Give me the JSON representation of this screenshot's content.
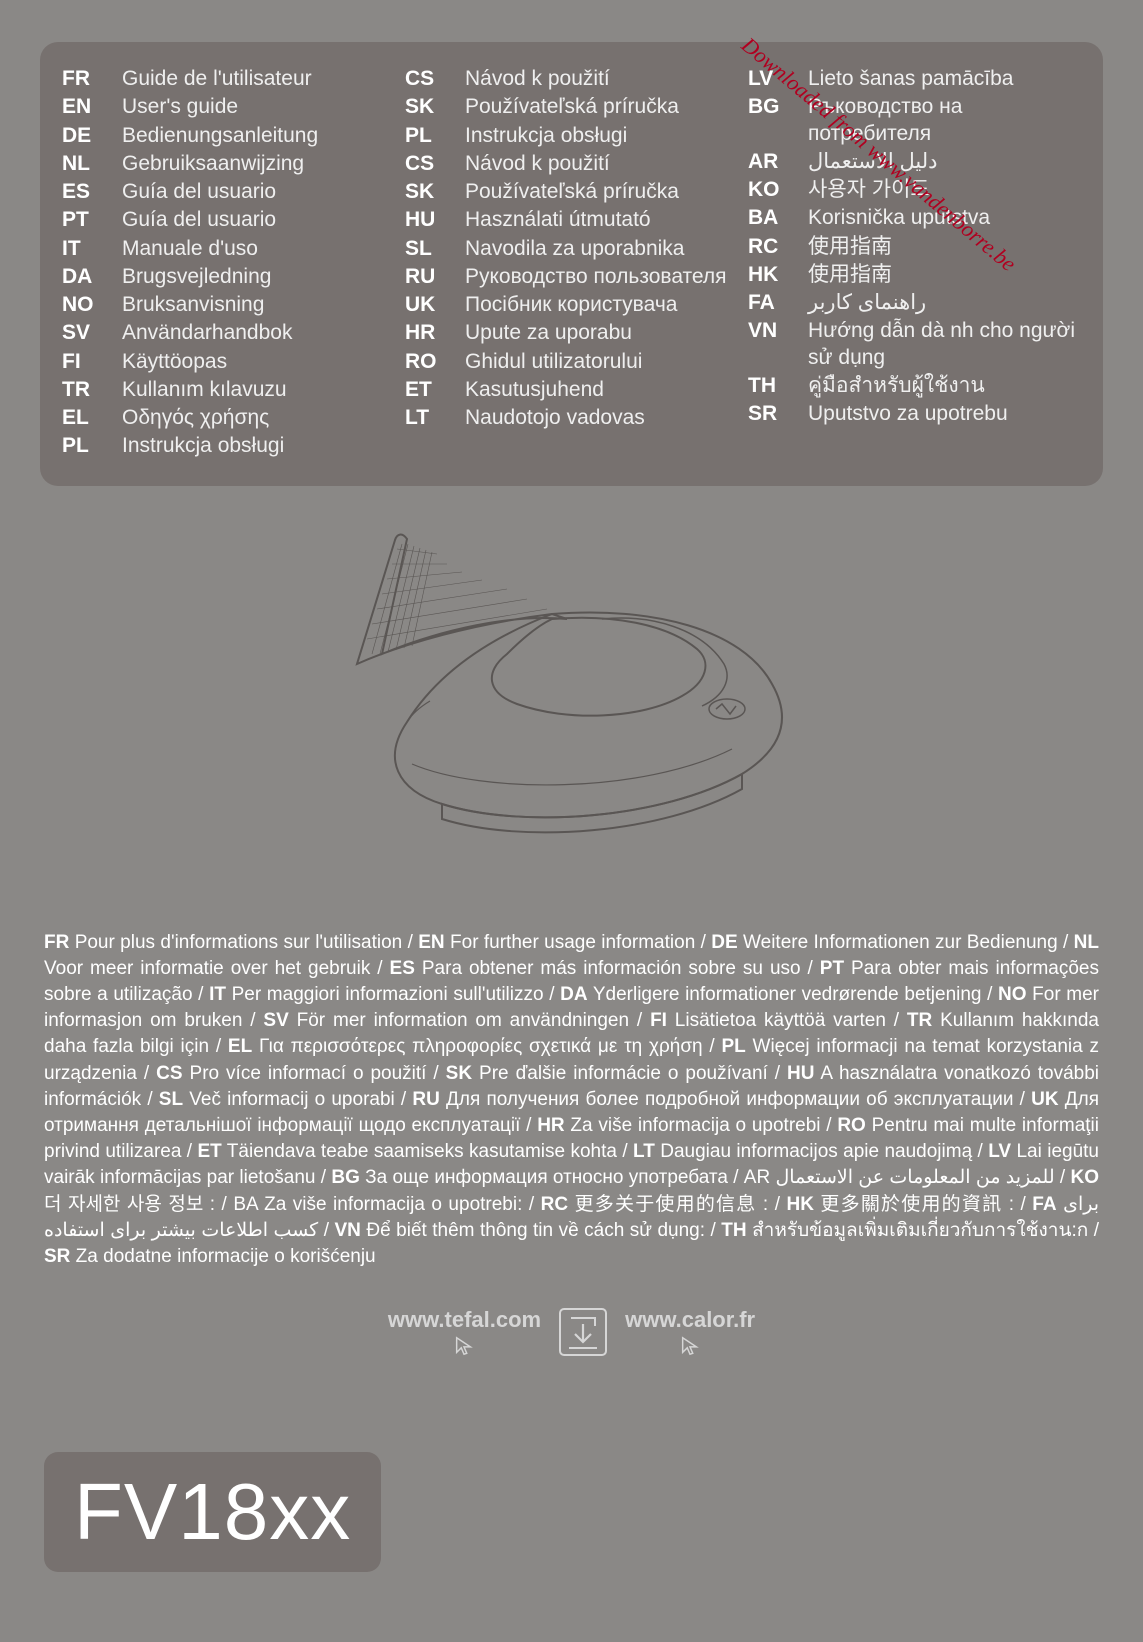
{
  "watermark": "Downloaded from www.vandenborre.be",
  "languages_col1": [
    {
      "code": "FR",
      "label": "Guide de l'utilisateur"
    },
    {
      "code": "EN",
      "label": "User's guide"
    },
    {
      "code": "DE",
      "label": "Bedienungsanleitung"
    },
    {
      "code": "NL",
      "label": "Gebruiksaanwijzing"
    },
    {
      "code": "ES",
      "label": "Guía del usuario"
    },
    {
      "code": "PT",
      "label": "Guía del usuario"
    },
    {
      "code": "IT",
      "label": "Manuale d'uso"
    },
    {
      "code": "DA",
      "label": "Brugsvejledning"
    },
    {
      "code": "NO",
      "label": "Bruksanvisning"
    },
    {
      "code": "SV",
      "label": "Användarhandbok"
    },
    {
      "code": "FI",
      "label": "Käyttöopas"
    },
    {
      "code": "TR",
      "label": "Kullanım kılavuzu"
    },
    {
      "code": "EL",
      "label": "Οδηγός χρήσης"
    },
    {
      "code": "PL",
      "label": "Instrukcja obsługi"
    }
  ],
  "languages_col2": [
    {
      "code": "CS",
      "label": "Návod k použití"
    },
    {
      "code": "SK",
      "label": "Používateľská príručka"
    },
    {
      "code": "PL",
      "label": "Instrukcja obsługi"
    },
    {
      "code": "CS",
      "label": "Návod k použití"
    },
    {
      "code": "SK",
      "label": "Používateľská príručka"
    },
    {
      "code": "HU",
      "label": "Használati útmutató"
    },
    {
      "code": "SL",
      "label": "Navodila za uporabnika"
    },
    {
      "code": "RU",
      "label": "Руководство пользователя"
    },
    {
      "code": "UK",
      "label": "Посібник користувача"
    },
    {
      "code": "HR",
      "label": "Upute za uporabu"
    },
    {
      "code": "RO",
      "label": "Ghidul utilizatorului"
    },
    {
      "code": "ET",
      "label": "Kasutusjuhend"
    },
    {
      "code": "LT",
      "label": "Naudotojo vadovas"
    }
  ],
  "languages_col3": [
    {
      "code": "LV",
      "label": "Lieto šanas pamācība"
    },
    {
      "code": "BG",
      "label": "Ръководство на потребителя"
    },
    {
      "code": "AR",
      "label": "دليل الاستعمال"
    },
    {
      "code": "KO",
      "label": "사용자 가이드"
    },
    {
      "code": "BA",
      "label": "Korisnička uputstva"
    },
    {
      "code": "RC",
      "label": "使用指南"
    },
    {
      "code": "HK",
      "label": "使用指南"
    },
    {
      "code": "FA",
      "label": "راهنمای کاربر"
    },
    {
      "code": "VN",
      "label": "Hướng dẫn dà nh cho người sử dụng"
    },
    {
      "code": "TH",
      "label": "คู่มือสำหรับผู้ใช้งาน"
    },
    {
      "code": "SR",
      "label": "Uputstvo za upotrebu"
    }
  ],
  "info_segments": [
    {
      "b": "FR",
      "t": " Pour plus d'informations sur l'utilisation / "
    },
    {
      "b": "EN",
      "t": " For further usage information / "
    },
    {
      "b": "DE",
      "t": " Weitere Informationen zur Bedienung / "
    },
    {
      "b": "NL",
      "t": " Voor meer informatie over het gebruik / "
    },
    {
      "b": "ES",
      "t": " Para obtener más información sobre su uso / "
    },
    {
      "b": "PT",
      "t": " Para obter mais informações sobre a utilização / "
    },
    {
      "b": "IT",
      "t": " Per maggiori informazioni sull'utilizzo / "
    },
    {
      "b": "DA",
      "t": " Yderligere informationer vedrørende betjening / "
    },
    {
      "b": "NO",
      "t": " For mer informasjon om bruken / "
    },
    {
      "b": "SV",
      "t": " För mer information om användningen / "
    },
    {
      "b": "FI",
      "t": " Lisätietoa käyttöä varten / "
    },
    {
      "b": "TR",
      "t": " Kullanım hakkında daha fazla bilgi için / "
    },
    {
      "b": "EL",
      "t": " Για περισσότερες πληροφορίες σχετικά με τη χρήση / "
    },
    {
      "b": "PL",
      "t": " Więcej informacji na temat korzystania z urządzenia / "
    },
    {
      "b": "CS",
      "t": " Pro více informací o použití / "
    },
    {
      "b": "SK",
      "t": " Pre ďalšie informácie o používaní / "
    },
    {
      "b": "HU",
      "t": " A használatra vonatkozó további információk / "
    },
    {
      "b": "SL",
      "t": " Več informacij o uporabi / "
    },
    {
      "b": "RU",
      "t": " Для получения более подробной информации об эксплуатации / "
    },
    {
      "b": "UK",
      "t": " Для отримання детальнішої інформації щодо експлуатації / "
    },
    {
      "b": "HR",
      "t": " Za više informacija o upotrebi / "
    },
    {
      "b": "RO",
      "t": " Pentru mai multe informaţii privind utilizarea / "
    },
    {
      "b": "ET",
      "t": " Täiendava teabe saamiseks kasutamise kohta / "
    },
    {
      "b": "LT",
      "t": " Daugiau informacijos apie naudojimą / "
    },
    {
      "b": "LV",
      "t": " Lai iegūtu vairāk informācijas par lietošanu / "
    },
    {
      "b": "BG",
      "t": " За още информация относно употребата / AR للمزيد من المعلومات عن الاستعمال / "
    },
    {
      "b": "KO",
      "t": " 더 자세한 사용 정보 : / BA Za više informacija o upotrebi: / "
    },
    {
      "b": "RC",
      "t": " 更多关于使用的信息 : / "
    },
    {
      "b": "HK",
      "t": " 更多關於使用的資訊 : / "
    },
    {
      "b": "FA",
      "t": " برای کسب اطلاعات بیشتر برای استفاده / "
    },
    {
      "b": "VN",
      "t": " Để biết thêm thông tin về cách sử dụng: / "
    },
    {
      "b": "TH",
      "t": " สำหรับข้อมูลเพิ่มเติมเกี่ยวกับการใช้งาน:ก / "
    },
    {
      "b": "SR",
      "t": " Za dodatne informacije o korišćenju"
    }
  ],
  "url1": "www.tefal.com",
  "url2": "www.calor.fr",
  "model": "FV18xx",
  "colors": {
    "page_bg": "#8a8886",
    "panel_bg": "#77716f",
    "text": "#ffffff",
    "muted": "#d6d6d6",
    "watermark": "#b00020"
  }
}
